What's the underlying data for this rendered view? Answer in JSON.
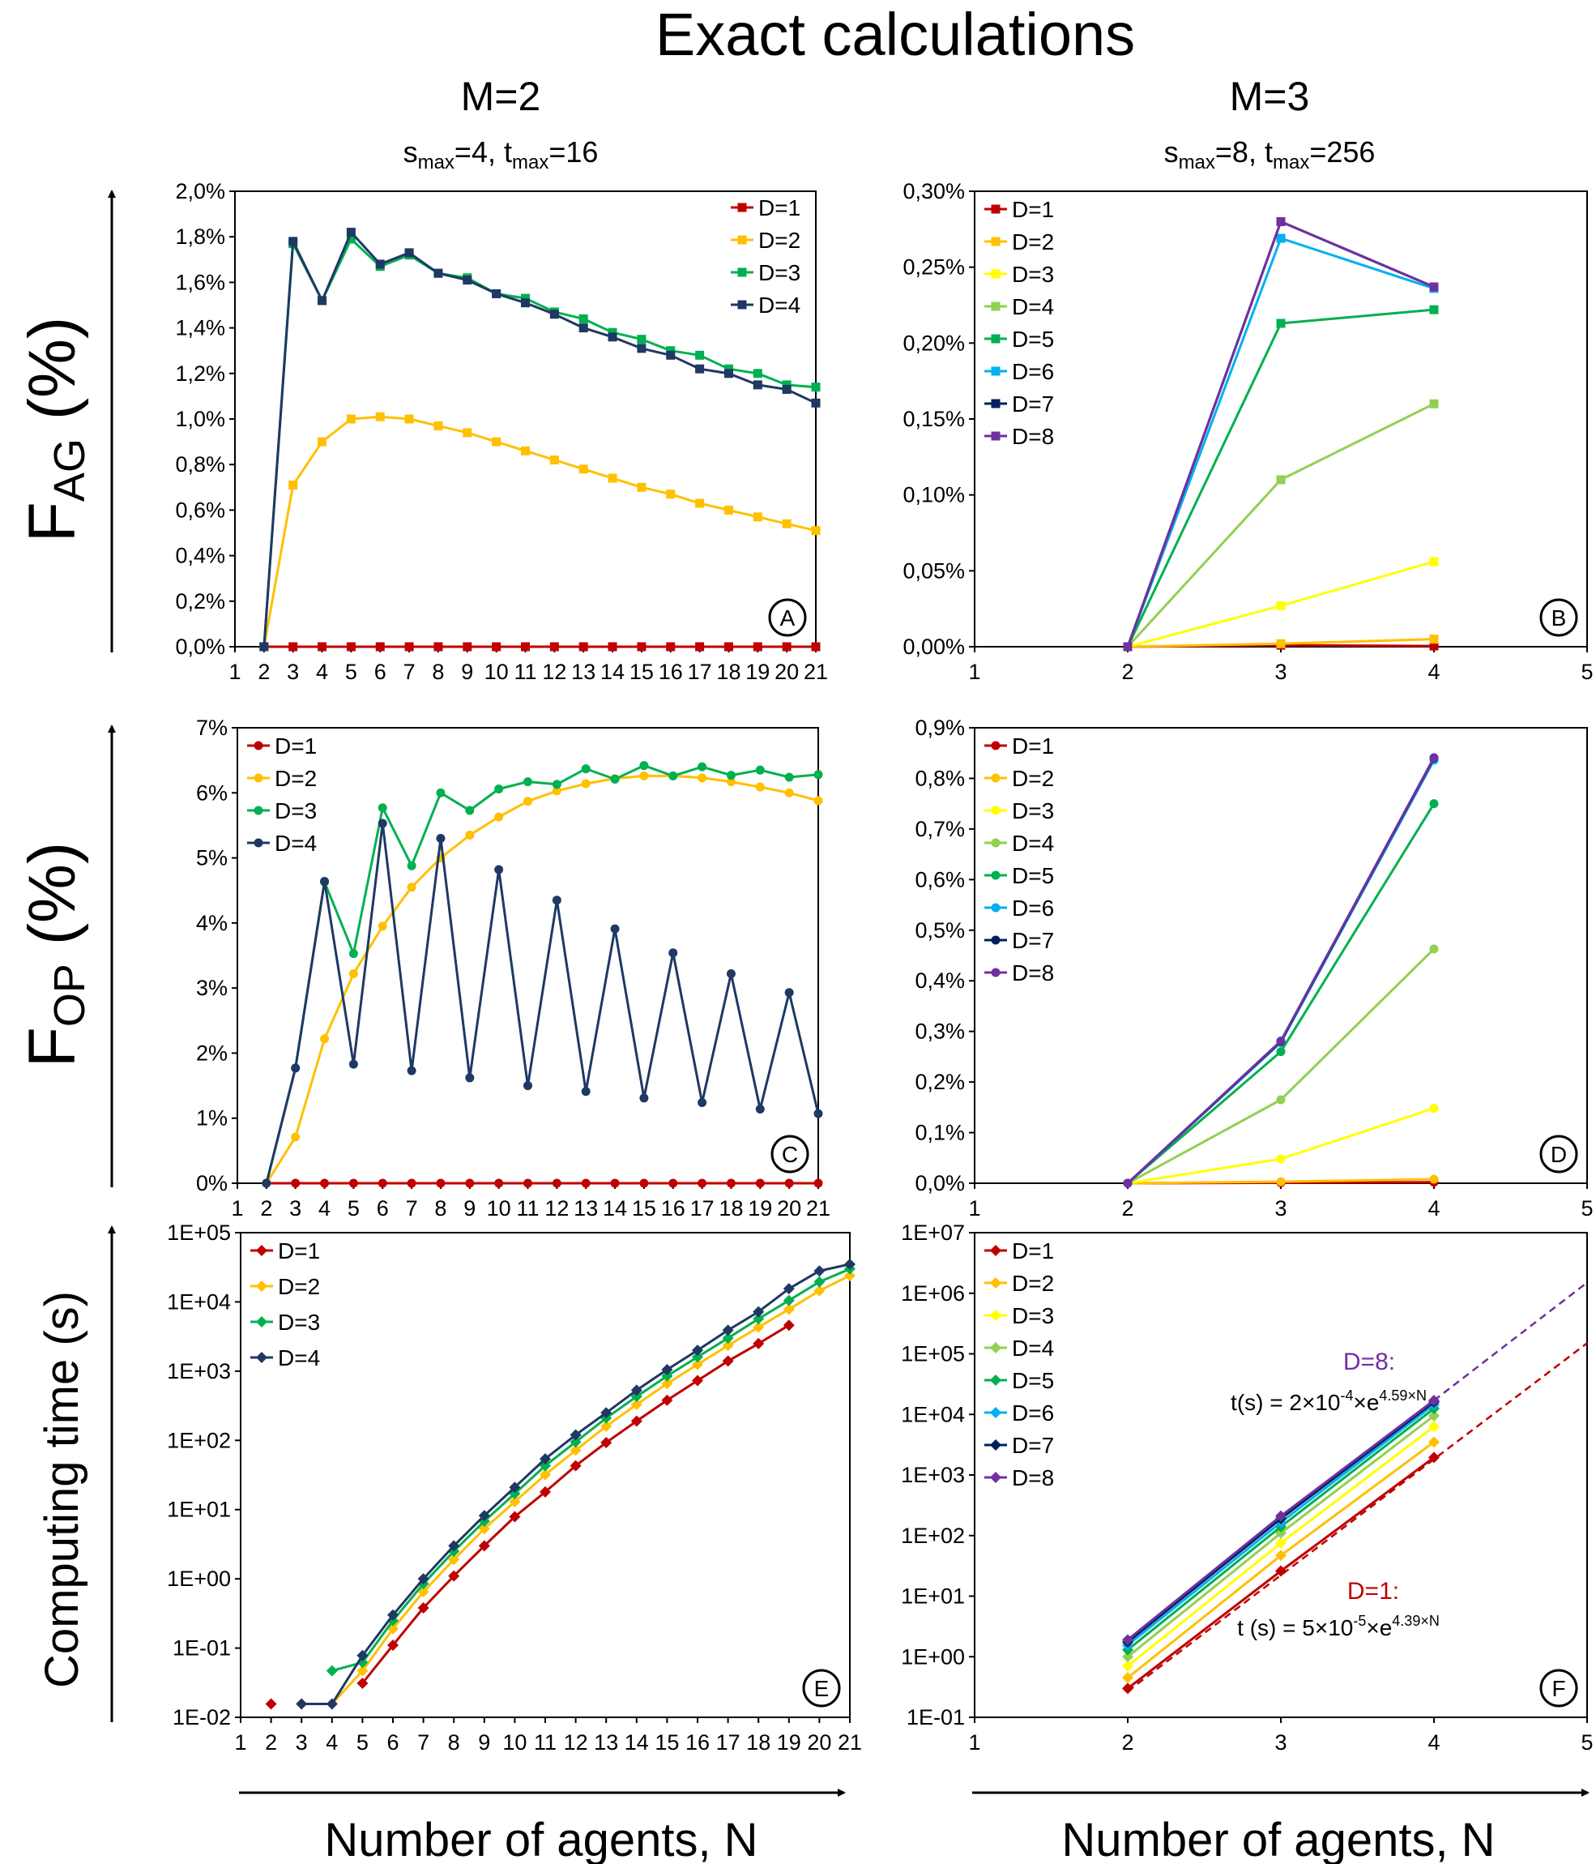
{
  "title": "Exact calculations",
  "columns": [
    {
      "heading": "M=2",
      "sub": {
        "s": "s",
        "s_sub": "max",
        "s_val": "=4, ",
        "t": "t",
        "t_sub": "max",
        "t_val": "=16"
      }
    },
    {
      "heading": "M=3",
      "sub": {
        "s": "s",
        "s_sub": "max",
        "s_val": "=8, ",
        "t": "t",
        "t_sub": "max",
        "t_val": "=256"
      }
    }
  ],
  "row_labels": {
    "fag": {
      "main": "F",
      "sub": "AG",
      "unit": " (%)"
    },
    "fop": {
      "main": "F",
      "sub": "OP",
      "unit": " (%)"
    },
    "time": "Computing time (s)"
  },
  "x_label": "Number of agents, N",
  "colors": {
    "D1": "#c00000",
    "D2": "#ffc000",
    "D3": "#ffff00",
    "D4": "#92d050",
    "D5": "#00b050",
    "D6": "#00b0f0",
    "D7": "#002060",
    "D8": "#7030a0",
    "M2_D3": "#00b050",
    "M2_D4": "#1f3864",
    "fit8": "#7030a0",
    "fit1": "#c00000"
  },
  "chart_data": [
    {
      "id": "A",
      "type": "line",
      "marker": "square",
      "ylim": [
        0,
        2.0
      ],
      "ytick_step": 0.2,
      "ytick_format": "percent_comma_1",
      "x_ticks": [
        1,
        2,
        3,
        4,
        5,
        6,
        7,
        8,
        9,
        10,
        11,
        12,
        13,
        14,
        15,
        16,
        17,
        18,
        19,
        20,
        21
      ],
      "legend_position": "top-right",
      "series": [
        {
          "name": "D=1",
          "color_key": "D1",
          "x": [
            2,
            3,
            4,
            5,
            6,
            7,
            8,
            9,
            10,
            11,
            12,
            13,
            14,
            15,
            16,
            17,
            18,
            19,
            20,
            21
          ],
          "values": [
            0,
            0,
            0,
            0,
            0,
            0,
            0,
            0,
            0,
            0,
            0,
            0,
            0,
            0,
            0,
            0,
            0,
            0,
            0,
            0
          ]
        },
        {
          "name": "D=2",
          "color_key": "D2",
          "x": [
            2,
            3,
            4,
            5,
            6,
            7,
            8,
            9,
            10,
            11,
            12,
            13,
            14,
            15,
            16,
            17,
            18,
            19,
            20,
            21
          ],
          "values": [
            0,
            0.71,
            0.9,
            1.0,
            1.01,
            1.0,
            0.97,
            0.94,
            0.9,
            0.86,
            0.82,
            0.78,
            0.74,
            0.7,
            0.67,
            0.63,
            0.6,
            0.57,
            0.54,
            0.51
          ]
        },
        {
          "name": "D=3",
          "color_key": "M2_D3",
          "x": [
            2,
            3,
            4,
            5,
            6,
            7,
            8,
            9,
            10,
            11,
            12,
            13,
            14,
            15,
            16,
            17,
            18,
            19,
            20,
            21
          ],
          "values": [
            0,
            1.77,
            1.52,
            1.79,
            1.67,
            1.72,
            1.64,
            1.62,
            1.55,
            1.53,
            1.47,
            1.44,
            1.38,
            1.35,
            1.3,
            1.28,
            1.22,
            1.2,
            1.15,
            1.14
          ]
        },
        {
          "name": "D=4",
          "color_key": "M2_D4",
          "x": [
            2,
            3,
            4,
            5,
            6,
            7,
            8,
            9,
            10,
            11,
            12,
            13,
            14,
            15,
            16,
            17,
            18,
            19,
            20,
            21
          ],
          "values": [
            0,
            1.78,
            1.52,
            1.82,
            1.68,
            1.73,
            1.64,
            1.61,
            1.55,
            1.51,
            1.46,
            1.4,
            1.36,
            1.31,
            1.28,
            1.22,
            1.2,
            1.15,
            1.13,
            1.07
          ]
        }
      ]
    },
    {
      "id": "B",
      "type": "line",
      "marker": "square",
      "ylim": [
        0,
        0.3
      ],
      "ytick_step": 0.05,
      "ytick_format": "percent_comma_2",
      "x_ticks": [
        1,
        2,
        3,
        4,
        5
      ],
      "legend_position": "top-left",
      "series": [
        {
          "name": "D=1",
          "color_key": "D1",
          "x": [
            2,
            3,
            4
          ],
          "values": [
            0,
            0.001,
            0.0005
          ]
        },
        {
          "name": "D=2",
          "color_key": "D2",
          "x": [
            2,
            3,
            4
          ],
          "values": [
            0,
            0.002,
            0.005
          ]
        },
        {
          "name": "D=3",
          "color_key": "D3",
          "x": [
            2,
            3,
            4
          ],
          "values": [
            0,
            0.027,
            0.056
          ]
        },
        {
          "name": "D=4",
          "color_key": "D4",
          "x": [
            2,
            3,
            4
          ],
          "values": [
            0,
            0.11,
            0.16
          ]
        },
        {
          "name": "D=5",
          "color_key": "D5",
          "x": [
            2,
            3,
            4
          ],
          "values": [
            0,
            0.213,
            0.222
          ]
        },
        {
          "name": "D=6",
          "color_key": "D6",
          "x": [
            2,
            3,
            4
          ],
          "values": [
            0,
            0.269,
            0.236
          ]
        },
        {
          "name": "D=7",
          "color_key": "D7",
          "x": [
            2,
            3,
            4
          ],
          "values": [
            0,
            0.28,
            0.237
          ]
        },
        {
          "name": "D=8",
          "color_key": "D8",
          "x": [
            2,
            3,
            4
          ],
          "values": [
            0,
            0.28,
            0.237
          ]
        }
      ]
    },
    {
      "id": "C",
      "type": "line",
      "marker": "circle",
      "ylim": [
        0,
        7
      ],
      "ytick_step": 1,
      "ytick_format": "percent_int",
      "x_ticks": [
        1,
        2,
        3,
        4,
        5,
        6,
        7,
        8,
        9,
        10,
        11,
        12,
        13,
        14,
        15,
        16,
        17,
        18,
        19,
        20,
        21
      ],
      "legend_position": "top-left",
      "series": [
        {
          "name": "D=1",
          "color_key": "D1",
          "x": [
            2,
            3,
            4,
            5,
            6,
            7,
            8,
            9,
            10,
            11,
            12,
            13,
            14,
            15,
            16,
            17,
            18,
            19,
            20,
            21
          ],
          "values": [
            0,
            0,
            0,
            0,
            0,
            0,
            0,
            0,
            0,
            0,
            0,
            0,
            0,
            0,
            0,
            0,
            0,
            0,
            0,
            0
          ]
        },
        {
          "name": "D=2",
          "color_key": "D2",
          "x": [
            2,
            3,
            4,
            5,
            6,
            7,
            8,
            9,
            10,
            11,
            12,
            13,
            14,
            15,
            16,
            17,
            18,
            19,
            20,
            21
          ],
          "values": [
            0,
            0.71,
            2.22,
            3.22,
            3.95,
            4.55,
            5.0,
            5.35,
            5.63,
            5.87,
            6.03,
            6.14,
            6.22,
            6.26,
            6.26,
            6.23,
            6.17,
            6.09,
            6.0,
            5.88
          ]
        },
        {
          "name": "D=3",
          "color_key": "M2_D3",
          "x": [
            2,
            3,
            4,
            5,
            6,
            7,
            8,
            9,
            10,
            11,
            12,
            13,
            14,
            15,
            16,
            17,
            18,
            19,
            20,
            21
          ],
          "values": [
            0,
            1.77,
            4.63,
            3.53,
            5.77,
            4.88,
            6.0,
            5.73,
            6.06,
            6.17,
            6.13,
            6.37,
            6.21,
            6.42,
            6.26,
            6.4,
            6.27,
            6.35,
            6.24,
            6.28
          ]
        },
        {
          "name": "D=4",
          "color_key": "M2_D4",
          "x": [
            2,
            3,
            4,
            5,
            6,
            7,
            8,
            9,
            10,
            11,
            12,
            13,
            14,
            15,
            16,
            17,
            18,
            19,
            20,
            21
          ],
          "values": [
            0,
            1.77,
            4.64,
            1.83,
            5.53,
            1.73,
            5.3,
            1.62,
            4.82,
            1.5,
            4.35,
            1.41,
            3.91,
            1.31,
            3.54,
            1.24,
            3.22,
            1.14,
            2.93,
            1.07
          ]
        }
      ]
    },
    {
      "id": "D",
      "type": "line",
      "marker": "circle",
      "ylim": [
        0,
        0.9
      ],
      "ytick_step": 0.1,
      "ytick_format": "percent_comma_1",
      "x_ticks": [
        1,
        2,
        3,
        4,
        5
      ],
      "legend_position": "top-left",
      "series": [
        {
          "name": "D=1",
          "color_key": "D1",
          "x": [
            2,
            3,
            4
          ],
          "values": [
            0,
            0.001,
            0.002
          ]
        },
        {
          "name": "D=2",
          "color_key": "D2",
          "x": [
            2,
            3,
            4
          ],
          "values": [
            0,
            0.003,
            0.008
          ]
        },
        {
          "name": "D=3",
          "color_key": "D3",
          "x": [
            2,
            3,
            4
          ],
          "values": [
            0,
            0.048,
            0.148
          ]
        },
        {
          "name": "D=4",
          "color_key": "D4",
          "x": [
            2,
            3,
            4
          ],
          "values": [
            0,
            0.165,
            0.463
          ]
        },
        {
          "name": "D=5",
          "color_key": "D5",
          "x": [
            2,
            3,
            4
          ],
          "values": [
            0,
            0.26,
            0.75
          ]
        },
        {
          "name": "D=6",
          "color_key": "D6",
          "x": [
            2,
            3,
            4
          ],
          "values": [
            0,
            0.278,
            0.836
          ]
        },
        {
          "name": "D=7",
          "color_key": "D7",
          "x": [
            2,
            3,
            4
          ],
          "values": [
            0,
            0.28,
            0.84
          ]
        },
        {
          "name": "D=8",
          "color_key": "D8",
          "x": [
            2,
            3,
            4
          ],
          "values": [
            0,
            0.281,
            0.841
          ]
        }
      ]
    },
    {
      "id": "E",
      "type": "line",
      "marker": "diamond",
      "yscale": "log",
      "ylim": [
        0.01,
        100000
      ],
      "ytick_labels": [
        "1E-02",
        "1E-01",
        "1E+00",
        "1E+01",
        "1E+02",
        "1E+03",
        "1E+04",
        "1E+05"
      ],
      "x_ticks": [
        1,
        2,
        3,
        4,
        5,
        6,
        7,
        8,
        9,
        10,
        11,
        12,
        13,
        14,
        15,
        16,
        17,
        18,
        19,
        20,
        21
      ],
      "legend_position": "top-left",
      "series": [
        {
          "name": "D=1",
          "color_key": "D1",
          "x": [
            2,
            5,
            6,
            7,
            8,
            9,
            10,
            11,
            12,
            13,
            14,
            15,
            16,
            17,
            18,
            19
          ],
          "values": [
            0.0156,
            0.031,
            0.11,
            0.38,
            1.1,
            3.0,
            7.9,
            18,
            43,
            93,
            190,
            380,
            730,
            1400,
            2500,
            4600
          ],
          "segments": [
            [
              1,
              15
            ]
          ]
        },
        {
          "name": "D=2",
          "color_key": "D2",
          "x": [
            3,
            4,
            5,
            6,
            7,
            8,
            9,
            10,
            11,
            12,
            13,
            14,
            15,
            16,
            17,
            18,
            19,
            20,
            21
          ],
          "values": [
            0.0156,
            0.0156,
            0.047,
            0.19,
            0.65,
            1.9,
            5.3,
            13,
            32,
            72,
            160,
            330,
            660,
            1250,
            2350,
            4300,
            7800,
            14500,
            24000
          ]
        },
        {
          "name": "D=3",
          "color_key": "M2_D3",
          "x": [
            4,
            5,
            6,
            7,
            8,
            9,
            10,
            11,
            12,
            13,
            14,
            15,
            16,
            17,
            18,
            19,
            20,
            21
          ],
          "values": [
            0.047,
            0.062,
            0.25,
            0.85,
            2.5,
            6.8,
            17,
            43,
            95,
            210,
            430,
            850,
            1600,
            3000,
            5700,
            10500,
            19500,
            30000
          ]
        },
        {
          "name": "D=4",
          "color_key": "M2_D4",
          "x": [
            3,
            4,
            5,
            6,
            7,
            8,
            9,
            10,
            11,
            12,
            13,
            14,
            15,
            16,
            17,
            18,
            19,
            20,
            21
          ],
          "values": [
            0.0156,
            0.0156,
            0.078,
            0.3,
            1.0,
            3.0,
            8.2,
            21,
            54,
            120,
            250,
            530,
            1050,
            2000,
            3900,
            7200,
            15500,
            28000,
            35000
          ]
        }
      ]
    },
    {
      "id": "F",
      "type": "line",
      "marker": "diamond",
      "yscale": "log",
      "ylim": [
        0.1,
        10000000
      ],
      "ytick_labels": [
        "1E-01",
        "1E+00",
        "1E+01",
        "1E+02",
        "1E+03",
        "1E+04",
        "1E+05",
        "1E+06",
        "1E+07"
      ],
      "x_ticks": [
        1,
        2,
        3,
        4,
        5
      ],
      "legend_position": "top-left",
      "series": [
        {
          "name": "D=1",
          "color_key": "D1",
          "x": [
            2,
            3,
            4
          ],
          "values": [
            0.3,
            26,
            1950
          ]
        },
        {
          "name": "D=2",
          "color_key": "D2",
          "x": [
            2,
            3,
            4
          ],
          "values": [
            0.45,
            47,
            3500
          ]
        },
        {
          "name": "D=3",
          "color_key": "D3",
          "x": [
            2,
            3,
            4
          ],
          "values": [
            0.7,
            75,
            6300
          ]
        },
        {
          "name": "D=4",
          "color_key": "D4",
          "x": [
            2,
            3,
            4
          ],
          "values": [
            1.0,
            110,
            9500
          ]
        },
        {
          "name": "D=5",
          "color_key": "D5",
          "x": [
            2,
            3,
            4
          ],
          "values": [
            1.3,
            140,
            12500
          ]
        },
        {
          "name": "D=6",
          "color_key": "D6",
          "x": [
            2,
            3,
            4
          ],
          "values": [
            1.55,
            165,
            14500
          ]
        },
        {
          "name": "D=7",
          "color_key": "D7",
          "x": [
            2,
            3,
            4
          ],
          "values": [
            1.75,
            190,
            16000
          ]
        },
        {
          "name": "D=8",
          "color_key": "D8",
          "x": [
            2,
            3,
            4
          ],
          "values": [
            1.9,
            210,
            17000
          ]
        }
      ],
      "fits": [
        {
          "color_key": "fit8",
          "from": [
            4,
            17000
          ],
          "to": [
            5,
            1500000
          ],
          "label": "D=8:",
          "eq": {
            "pre": "t(s) = 2×10",
            "exp1": "-4",
            "mid": "×e",
            "exp2": "4.59×N"
          }
        },
        {
          "color_key": "fit1",
          "from": [
            2,
            0.27
          ],
          "to": [
            5,
            150000
          ],
          "label": "D=1:",
          "eq": {
            "pre": "t (s) = 5×10",
            "exp1": "-5",
            "mid": "×e",
            "exp2": "4.39×N"
          }
        }
      ]
    }
  ]
}
